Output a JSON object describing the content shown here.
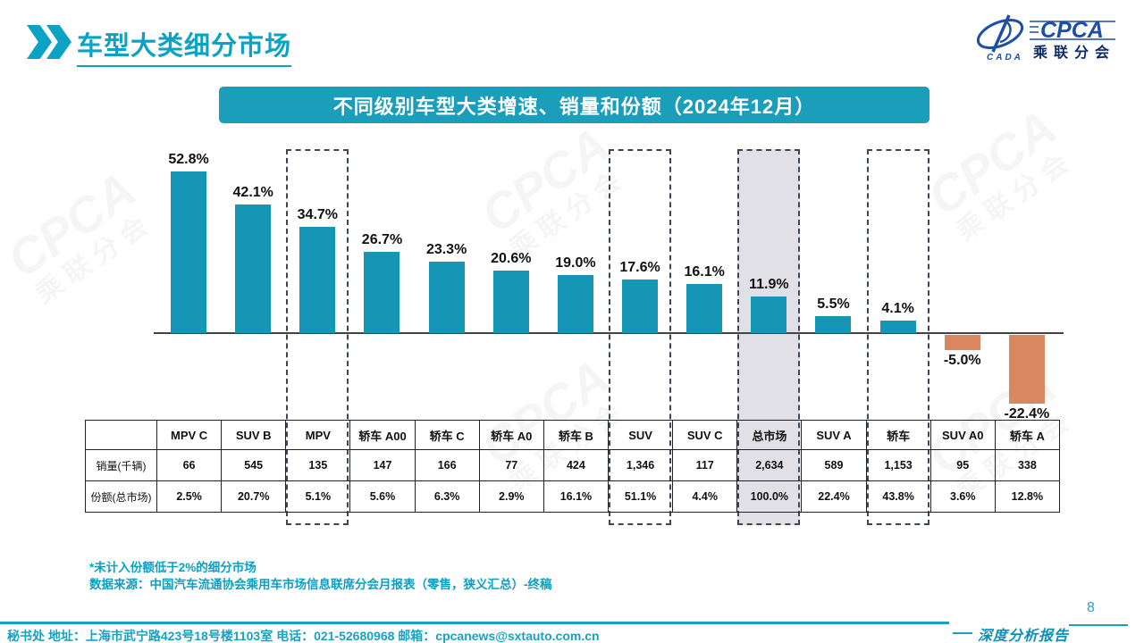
{
  "header": {
    "title": "车型大类细分市场",
    "logo": {
      "cpca": "CPCA",
      "cada": "CADA",
      "cn": "乘联分会"
    }
  },
  "banner": {
    "title": "不同级别车型大类增速、销量和份额（2024年12月）"
  },
  "chart_data": {
    "type": "bar",
    "title": "不同级别车型大类增速、销量和份额（2024年12月）",
    "categories": [
      "MPV C",
      "SUV B",
      "MPV",
      "轿车 A00",
      "轿车 C",
      "轿车 A0",
      "轿车 B",
      "SUV",
      "SUV C",
      "总市场",
      "SUV A",
      "轿车",
      "SUV A0",
      "轿车 A"
    ],
    "values": [
      52.8,
      42.1,
      34.7,
      26.7,
      23.3,
      20.6,
      19.0,
      17.6,
      16.1,
      11.9,
      5.5,
      4.1,
      -5.0,
      -22.4
    ],
    "value_labels": [
      "52.8%",
      "42.1%",
      "34.7%",
      "26.7%",
      "23.3%",
      "20.6%",
      "19.0%",
      "17.6%",
      "16.1%",
      "11.9%",
      "5.5%",
      "4.1%",
      "-5.0%",
      "-22.4%"
    ],
    "xlabel": "",
    "ylabel": "",
    "ylim": [
      -25,
      55
    ],
    "grid": false,
    "legend": false,
    "bar_color": "#1696b5",
    "negative_bar_color": "#d8875f",
    "highlights": [
      {
        "index": 2,
        "type": "dashed"
      },
      {
        "index": 7,
        "type": "dashed"
      },
      {
        "index": 9,
        "type": "gray"
      },
      {
        "index": 11,
        "type": "dashed"
      }
    ],
    "table": {
      "row_headers": [
        "销量(千辆)",
        "份额(总市场)"
      ],
      "rows": [
        [
          "66",
          "545",
          "135",
          "147",
          "166",
          "77",
          "424",
          "1,346",
          "117",
          "2,634",
          "589",
          "1,153",
          "95",
          "338"
        ],
        [
          "2.5%",
          "20.7%",
          "5.1%",
          "5.6%",
          "6.3%",
          "2.9%",
          "16.1%",
          "51.1%",
          "4.4%",
          "100.0%",
          "22.4%",
          "43.8%",
          "3.6%",
          "12.8%"
        ]
      ]
    }
  },
  "footnotes": [
    "*未计入份额低于2%的细分市场",
    "数据来源：中国汽车流通协会乘用车市场信息联席分会月报表（零售，狭义汇总）-终稿"
  ],
  "footer": {
    "left": "秘书处  地址：上海市武宁路423号18号楼1103室 电话：021-52680968   邮箱：cpcanews@sxtauto.com.cn",
    "report_label": "深度分析报告",
    "page": "8"
  },
  "watermark": {
    "line1": "CPCA",
    "line2": "乘联分会"
  },
  "colors": {
    "accent_teal": "#0ca2c3",
    "banner_bg": "#1b9eb9",
    "bar_positive": "#1696b5",
    "bar_negative": "#d8875f",
    "highlight_gray": "#e0e0e6",
    "dash_border": "#3d4653",
    "logo_blue": "#1d4fa6"
  }
}
